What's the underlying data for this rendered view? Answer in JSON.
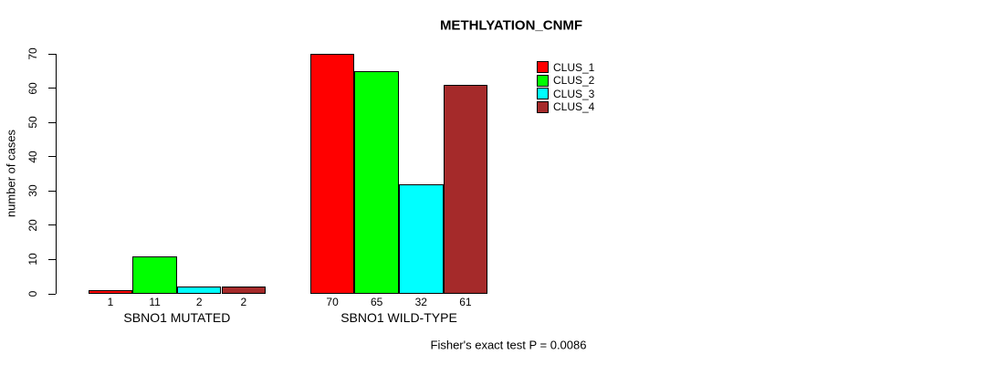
{
  "chart_data": {
    "type": "bar",
    "title": "METHLYATION_CNMF",
    "ylabel": "number of cases",
    "ylim": [
      0,
      70
    ],
    "yticks": [
      0,
      10,
      20,
      30,
      40,
      50,
      60,
      70
    ],
    "grid": false,
    "legend_position": "top-right",
    "bar_value_labels": true,
    "categories": [
      "SBNO1 MUTATED",
      "SBNO1 WILD-TYPE"
    ],
    "series": [
      {
        "name": "CLUS_1",
        "color": "#FF0000",
        "values": [
          1,
          70
        ]
      },
      {
        "name": "CLUS_2",
        "color": "#00FF00",
        "values": [
          11,
          65
        ]
      },
      {
        "name": "CLUS_3",
        "color": "#00FFFF",
        "values": [
          2,
          32
        ]
      },
      {
        "name": "CLUS_4",
        "color": "#A52A2A",
        "values": [
          2,
          61
        ]
      }
    ],
    "groups": [
      {
        "label": "SBNO1 MUTATED",
        "values": [
          1,
          11,
          2,
          2
        ]
      },
      {
        "label": "SBNO1 WILD-TYPE",
        "values": [
          70,
          65,
          32,
          61
        ]
      }
    ],
    "footnote": "Fisher's exact test P = 0.0086"
  }
}
